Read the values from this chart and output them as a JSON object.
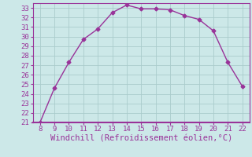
{
  "x": [
    8,
    9,
    10,
    11,
    12,
    13,
    14,
    15,
    16,
    17,
    18,
    19,
    20,
    21,
    22
  ],
  "y": [
    21.0,
    24.6,
    27.3,
    29.7,
    30.8,
    32.5,
    33.3,
    32.9,
    32.9,
    32.8,
    32.2,
    31.8,
    30.6,
    27.3,
    24.8
  ],
  "line_color": "#993399",
  "marker": "D",
  "marker_size": 2.5,
  "xlabel": "Windchill (Refroidissement éolien,°C)",
  "xlabel_color": "#993399",
  "xlim": [
    7.5,
    22.5
  ],
  "ylim": [
    21,
    33.5
  ],
  "yticks": [
    21,
    22,
    23,
    24,
    25,
    26,
    27,
    28,
    29,
    30,
    31,
    32,
    33
  ],
  "xticks": [
    8,
    9,
    10,
    11,
    12,
    13,
    14,
    15,
    16,
    17,
    18,
    19,
    20,
    21,
    22
  ],
  "bg_color": "#cce8e8",
  "grid_color": "#aacccc",
  "line_color_spine": "#993399",
  "tick_color": "#993399",
  "tick_label_color": "#993399",
  "xlabel_fontsize": 7.5,
  "tick_fontsize": 6.5,
  "linewidth": 1.0,
  "spine_linewidth": 1.5
}
